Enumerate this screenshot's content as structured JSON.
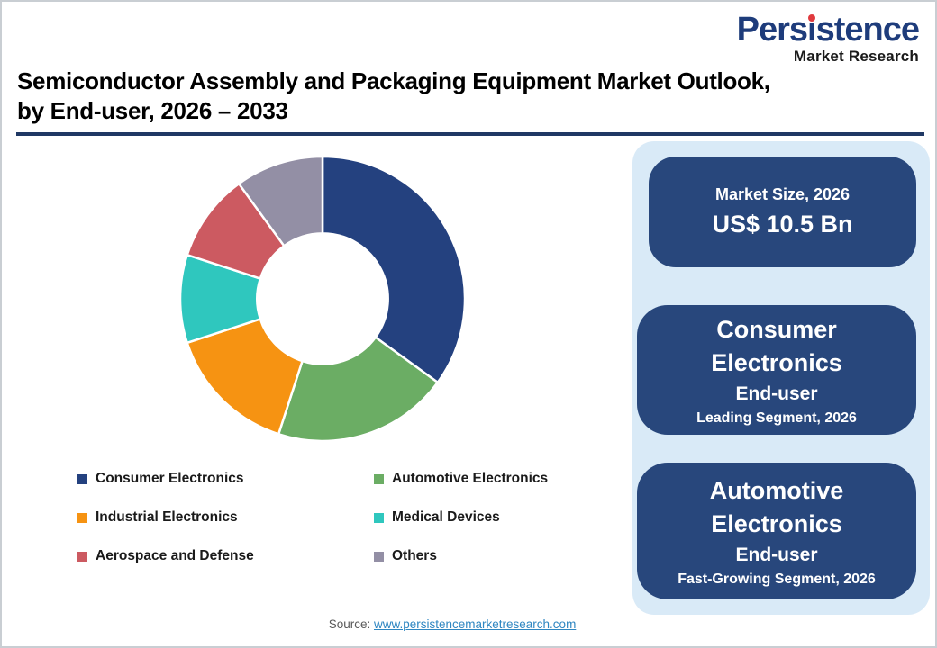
{
  "header": {
    "logo": {
      "brand_parts": [
        "Pers",
        "i",
        "stence"
      ],
      "subtitle": "Market Research",
      "brand_color": "#1E3C7B",
      "dot_color": "#E03A3E",
      "subtitle_color": "#1A1A1A"
    },
    "title_line1": "Semiconductor Assembly and Packaging Equipment Market Outlook,",
    "title_line2": "by End-user, 2026 – 2033",
    "rule_color": "#1F3864"
  },
  "chart_data": {
    "type": "pie",
    "subtype": "donut",
    "title": "Semiconductor Assembly and Packaging Equipment Market Outlook, by End-user, 2026 – 2033",
    "categories": [
      "Consumer Electronics",
      "Automotive Electronics",
      "Industrial Electronics",
      "Medical Devices",
      "Aerospace and Defense",
      "Others"
    ],
    "values": [
      35,
      20,
      15,
      10,
      10,
      10
    ],
    "values_note": "Percent share estimated from arc angles; no numeric data labels are shown in the image",
    "colors": [
      "#24417F",
      "#6BAD64",
      "#F69312",
      "#2FC7BE",
      "#CC5A61",
      "#938FA5"
    ],
    "start_angle_deg": 0,
    "direction": "clockwise",
    "inner_radius_ratio": 0.46,
    "grid": false,
    "legend_position": "below chart, two columns"
  },
  "sidebar": {
    "panel_color": "#D9EAF7",
    "card_color": "#28477C",
    "text_color": "#FFFFFF",
    "cards": [
      {
        "line1": "Market Size, 2026",
        "line2": "US$ 10.5 Bn"
      },
      {
        "title": "Consumer Electronics",
        "subtitle": "End-user",
        "caption": "Leading Segment, 2026"
      },
      {
        "title": "Automotive Electronics",
        "subtitle": "End-user",
        "caption": "Fast-Growing Segment, 2026"
      }
    ]
  },
  "footer": {
    "source_label": "Source:",
    "source_link": "www.persistencemarketresearch.com",
    "link_color": "#2E86C1"
  }
}
